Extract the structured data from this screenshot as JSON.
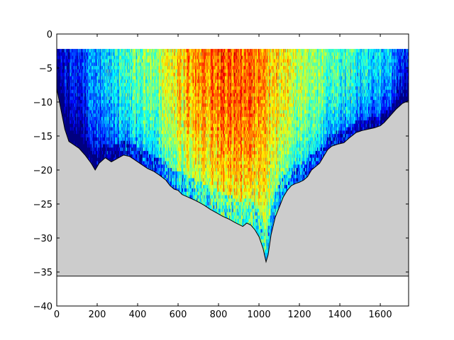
{
  "chart_data": {
    "type": "heatmap",
    "title": "",
    "xlabel": "",
    "ylabel": "",
    "xlim": [
      0,
      1740
    ],
    "ylim": [
      -40,
      0
    ],
    "xticks": [
      0,
      200,
      400,
      600,
      800,
      1000,
      1200,
      1400,
      1600
    ],
    "yticks": [
      0,
      -5,
      -10,
      -15,
      -20,
      -25,
      -30,
      -35,
      -40
    ],
    "xtick_labels": [
      "0",
      "200",
      "400",
      "600",
      "800",
      "1000",
      "1200",
      "1400",
      "1600"
    ],
    "ytick_labels": [
      "0",
      "−5",
      "−10",
      "−15",
      "−20",
      "−25",
      "−30",
      "−35",
      "−40"
    ],
    "grid": false,
    "legend": "none",
    "colormap": "jet",
    "cell_top_depth": -2.2,
    "reference_line_depth": -35.6,
    "bottom_fill_color": "#cccccc",
    "bottom_profile": [
      [
        0,
        -8.0
      ],
      [
        20,
        -11.0
      ],
      [
        40,
        -14.0
      ],
      [
        60,
        -15.8
      ],
      [
        80,
        -16.2
      ],
      [
        110,
        -16.8
      ],
      [
        140,
        -17.8
      ],
      [
        170,
        -19.0
      ],
      [
        190,
        -20.0
      ],
      [
        210,
        -19.0
      ],
      [
        240,
        -18.2
      ],
      [
        270,
        -18.8
      ],
      [
        300,
        -18.3
      ],
      [
        330,
        -17.8
      ],
      [
        360,
        -18.0
      ],
      [
        390,
        -18.6
      ],
      [
        420,
        -19.2
      ],
      [
        450,
        -19.8
      ],
      [
        480,
        -20.2
      ],
      [
        510,
        -20.8
      ],
      [
        540,
        -21.5
      ],
      [
        560,
        -22.3
      ],
      [
        580,
        -22.8
      ],
      [
        600,
        -23.0
      ],
      [
        620,
        -23.6
      ],
      [
        650,
        -24.0
      ],
      [
        680,
        -24.4
      ],
      [
        700,
        -24.7
      ],
      [
        730,
        -25.2
      ],
      [
        760,
        -25.8
      ],
      [
        790,
        -26.3
      ],
      [
        820,
        -26.8
      ],
      [
        850,
        -27.2
      ],
      [
        880,
        -27.7
      ],
      [
        900,
        -28.0
      ],
      [
        920,
        -28.3
      ],
      [
        940,
        -27.8
      ],
      [
        960,
        -28.1
      ],
      [
        980,
        -28.8
      ],
      [
        1000,
        -29.8
      ],
      [
        1020,
        -31.5
      ],
      [
        1035,
        -33.5
      ],
      [
        1045,
        -32.5
      ],
      [
        1060,
        -29.5
      ],
      [
        1080,
        -27.0
      ],
      [
        1100,
        -25.5
      ],
      [
        1120,
        -24.0
      ],
      [
        1140,
        -23.0
      ],
      [
        1160,
        -22.3
      ],
      [
        1180,
        -22.0
      ],
      [
        1200,
        -21.8
      ],
      [
        1220,
        -21.5
      ],
      [
        1240,
        -21.0
      ],
      [
        1260,
        -20.0
      ],
      [
        1280,
        -19.5
      ],
      [
        1300,
        -19.0
      ],
      [
        1320,
        -18.0
      ],
      [
        1340,
        -17.0
      ],
      [
        1360,
        -16.5
      ],
      [
        1390,
        -16.2
      ],
      [
        1420,
        -16.0
      ],
      [
        1450,
        -15.2
      ],
      [
        1480,
        -14.5
      ],
      [
        1510,
        -14.2
      ],
      [
        1540,
        -14.0
      ],
      [
        1570,
        -13.8
      ],
      [
        1600,
        -13.5
      ],
      [
        1620,
        -13.0
      ],
      [
        1650,
        -12.0
      ],
      [
        1680,
        -11.0
      ],
      [
        1710,
        -10.2
      ],
      [
        1740,
        -9.8
      ]
    ],
    "intensity_profile": [
      [
        0,
        0.05
      ],
      [
        150,
        0.22
      ],
      [
        300,
        0.38
      ],
      [
        450,
        0.5
      ],
      [
        550,
        0.58
      ],
      [
        650,
        0.7
      ],
      [
        750,
        0.76
      ],
      [
        850,
        0.8
      ],
      [
        950,
        0.78
      ],
      [
        1050,
        0.68
      ],
      [
        1150,
        0.6
      ],
      [
        1250,
        0.52
      ],
      [
        1350,
        0.45
      ],
      [
        1450,
        0.42
      ],
      [
        1550,
        0.36
      ],
      [
        1650,
        0.3
      ],
      [
        1740,
        0.15
      ]
    ]
  }
}
